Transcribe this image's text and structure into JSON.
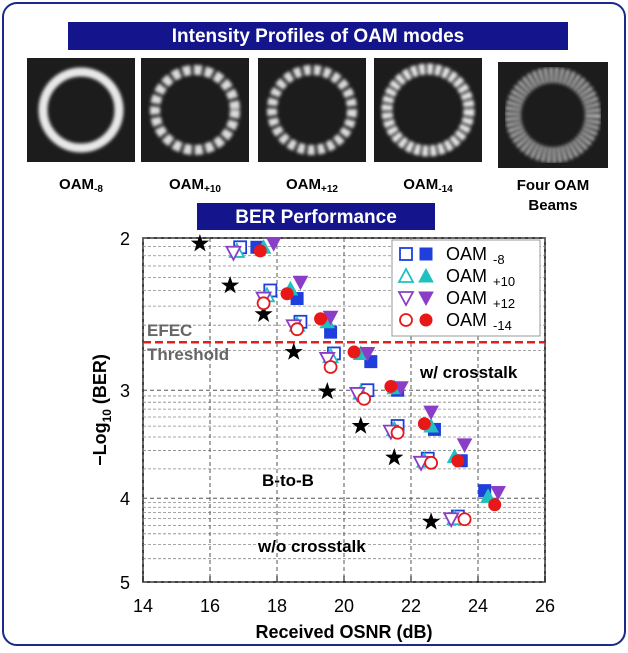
{
  "banner": {
    "title": "Intensity Profiles of OAM modes",
    "panels": [
      {
        "label": "OAM",
        "sub": "-8"
      },
      {
        "label": "OAM",
        "sub": "+10"
      },
      {
        "label": "OAM",
        "sub": "+12"
      },
      {
        "label": "OAM",
        "sub": "-14"
      },
      {
        "lines": [
          "Four OAM",
          "Beams"
        ]
      }
    ]
  },
  "chart_data": {
    "type": "scatter",
    "section_title": "BER Performance",
    "x_label": "Received OSNR (dB)",
    "y_label": {
      "main": "−Log",
      "sub": "10",
      "rest": " (BER)"
    },
    "xlim": [
      14,
      26
    ],
    "xticks": [
      14,
      16,
      18,
      20,
      22,
      24,
      26
    ],
    "ylim": [
      2,
      5
    ],
    "yticks": [
      2,
      3,
      4,
      5
    ],
    "yscale": "log",
    "y_inverted": true,
    "grid": true,
    "yminor": [
      2.046,
      2.097,
      2.155,
      2.222,
      2.301,
      2.398,
      2.523,
      2.699,
      3.046,
      3.097,
      3.155,
      3.222,
      3.301,
      3.398,
      3.523,
      3.699,
      4.046,
      4.097,
      4.155,
      4.222,
      4.301,
      4.398,
      4.523,
      4.699
    ],
    "threshold": {
      "value": 2.64,
      "labels": [
        "EFEC",
        "Threshold"
      ],
      "color": "#e02020"
    },
    "series": [
      {
        "name": "OAM",
        "sub": "-8",
        "color": "#1f3fdd",
        "marker": "square",
        "without_crosstalk": {
          "x": [
            16.9,
            17.8,
            18.7,
            19.7,
            20.7,
            21.6,
            22.5,
            23.4
          ],
          "values": [
            2.05,
            2.3,
            2.5,
            2.72,
            3.0,
            3.3,
            3.6,
            4.2
          ]
        },
        "with_crosstalk": {
          "x": [
            17.4,
            18.6,
            19.6,
            20.8,
            21.6,
            22.7,
            23.5,
            24.2
          ],
          "values": [
            2.05,
            2.35,
            2.57,
            2.78,
            3.0,
            3.33,
            3.62,
            3.92
          ]
        }
      },
      {
        "name": "OAM",
        "sub": "+10",
        "color": "#20c0c0",
        "marker": "triangle-up",
        "without_crosstalk": {
          "x": [
            16.8,
            17.7,
            18.6,
            19.6,
            20.5,
            21.5,
            22.4,
            23.3
          ],
          "values": [
            2.07,
            2.33,
            2.52,
            2.74,
            3.02,
            3.33,
            3.62,
            4.22
          ]
        },
        "with_crosstalk": {
          "x": [
            17.6,
            18.4,
            19.5,
            20.5,
            21.5,
            22.6,
            23.3,
            24.3
          ],
          "values": [
            2.05,
            2.29,
            2.5,
            2.72,
            2.98,
            3.3,
            3.58,
            3.98
          ]
        }
      },
      {
        "name": "OAM",
        "sub": "+12",
        "color": "#8a3ec8",
        "marker": "triangle-down",
        "without_crosstalk": {
          "x": [
            16.7,
            17.6,
            18.5,
            19.5,
            20.4,
            21.4,
            22.3,
            23.2
          ],
          "values": [
            2.08,
            2.35,
            2.53,
            2.76,
            3.03,
            3.35,
            3.64,
            4.23
          ]
        },
        "with_crosstalk": {
          "x": [
            17.9,
            18.7,
            19.6,
            20.7,
            21.7,
            22.6,
            23.6,
            24.6
          ],
          "values": [
            2.03,
            2.25,
            2.47,
            2.72,
            2.98,
            3.18,
            3.47,
            3.94
          ]
        }
      },
      {
        "name": "OAM",
        "sub": "-14",
        "color": "#e81818",
        "marker": "circle",
        "without_crosstalk": {
          "x": [
            17.6,
            18.6,
            19.6,
            20.6,
            21.6,
            22.6,
            23.6
          ],
          "values": [
            2.38,
            2.55,
            2.82,
            3.07,
            3.36,
            3.64,
            4.23
          ]
        },
        "with_crosstalk": {
          "x": [
            17.5,
            18.3,
            19.3,
            20.3,
            21.4,
            22.4,
            23.4,
            24.5
          ],
          "values": [
            2.07,
            2.32,
            2.48,
            2.71,
            2.97,
            3.28,
            3.62,
            4.07
          ]
        }
      }
    ],
    "back_to_back": {
      "color": "#000000",
      "marker": "star",
      "x": [
        15.7,
        16.6,
        17.6,
        18.5,
        19.5,
        20.5,
        21.5,
        22.6
      ],
      "values": [
        2.03,
        2.27,
        2.45,
        2.71,
        3.01,
        3.3,
        3.59,
        4.26
      ]
    },
    "annotations": [
      "w/ crosstalk",
      "B-to-B",
      "w/o crosstalk"
    ]
  }
}
